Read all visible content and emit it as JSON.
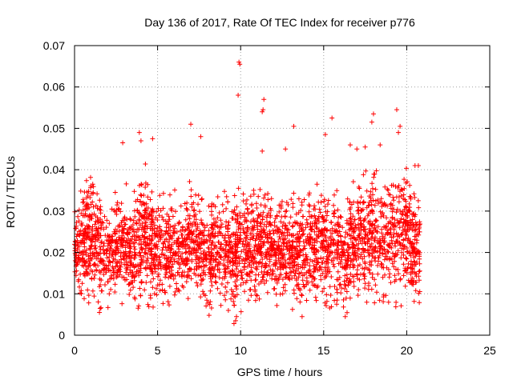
{
  "chart_data": {
    "type": "scatter",
    "title": "Day 136 of 2017, Rate Of TEC Index for receiver p776",
    "xlabel": "GPS time / hours",
    "ylabel": "ROTI / TECUs",
    "xlim": [
      0,
      25
    ],
    "ylim": [
      0,
      0.07
    ],
    "x_ticks": [
      "0",
      "5",
      "10",
      "15",
      "20",
      "25"
    ],
    "y_ticks": [
      "0",
      "0.01",
      "0.02",
      "0.03",
      "0.04",
      "0.05",
      "0.06",
      "0.07"
    ],
    "x_tick_values": [
      0,
      5,
      10,
      15,
      20,
      25
    ],
    "y_tick_values": [
      0,
      0.01,
      0.02,
      0.03,
      0.04,
      0.05,
      0.06,
      0.07
    ],
    "grid": true,
    "marker": "+",
    "color": "#ff0000",
    "data_x_range": [
      0,
      20.8
    ],
    "envelope": {
      "hours": [
        0,
        0.5,
        1,
        1.5,
        2,
        2.5,
        3,
        3.5,
        4,
        4.5,
        5,
        5.5,
        6,
        6.5,
        7,
        7.5,
        8,
        8.5,
        9,
        9.5,
        10,
        10.5,
        11,
        11.5,
        12,
        12.5,
        13,
        13.5,
        14,
        14.5,
        15,
        15.5,
        16,
        16.5,
        17,
        17.5,
        18,
        18.5,
        19,
        19.5,
        20,
        20.5,
        20.8
      ],
      "low": [
        0.012,
        0.008,
        0.007,
        0.006,
        0.006,
        0.007,
        0.006,
        0.007,
        0.005,
        0.006,
        0.006,
        0.007,
        0.006,
        0.007,
        0.006,
        0.007,
        0.006,
        0.007,
        0.006,
        0.006,
        0.004,
        0.006,
        0.006,
        0.007,
        0.007,
        0.007,
        0.006,
        0.006,
        0.005,
        0.007,
        0.006,
        0.006,
        0.006,
        0.005,
        0.007,
        0.007,
        0.006,
        0.007,
        0.007,
        0.006,
        0.007,
        0.006,
        0.008
      ],
      "high": [
        0.03,
        0.037,
        0.04,
        0.035,
        0.033,
        0.035,
        0.038,
        0.034,
        0.043,
        0.04,
        0.038,
        0.034,
        0.036,
        0.033,
        0.039,
        0.035,
        0.034,
        0.033,
        0.037,
        0.035,
        0.038,
        0.034,
        0.038,
        0.036,
        0.033,
        0.034,
        0.036,
        0.035,
        0.037,
        0.038,
        0.04,
        0.036,
        0.035,
        0.037,
        0.039,
        0.041,
        0.043,
        0.038,
        0.04,
        0.042,
        0.041,
        0.037,
        0.036
      ]
    },
    "outliers": [
      {
        "x": 9.9,
        "y": 0.066
      },
      {
        "x": 9.95,
        "y": 0.0655
      },
      {
        "x": 9.85,
        "y": 0.058
      },
      {
        "x": 11.4,
        "y": 0.057
      },
      {
        "x": 11.3,
        "y": 0.054
      },
      {
        "x": 11.35,
        "y": 0.0545
      },
      {
        "x": 11.3,
        "y": 0.0445
      },
      {
        "x": 7.0,
        "y": 0.051
      },
      {
        "x": 7.6,
        "y": 0.048
      },
      {
        "x": 13.2,
        "y": 0.0505
      },
      {
        "x": 15.5,
        "y": 0.0525
      },
      {
        "x": 15.1,
        "y": 0.0485
      },
      {
        "x": 18.0,
        "y": 0.0535
      },
      {
        "x": 17.9,
        "y": 0.0515
      },
      {
        "x": 19.4,
        "y": 0.0545
      },
      {
        "x": 19.6,
        "y": 0.0505
      },
      {
        "x": 19.5,
        "y": 0.049
      },
      {
        "x": 3.9,
        "y": 0.049
      },
      {
        "x": 4.0,
        "y": 0.047
      },
      {
        "x": 2.9,
        "y": 0.0465
      },
      {
        "x": 4.7,
        "y": 0.0475
      },
      {
        "x": 12.7,
        "y": 0.045
      },
      {
        "x": 16.6,
        "y": 0.046
      },
      {
        "x": 17.0,
        "y": 0.045
      },
      {
        "x": 17.5,
        "y": 0.0455
      },
      {
        "x": 18.4,
        "y": 0.046
      },
      {
        "x": 20.5,
        "y": 0.041
      },
      {
        "x": 20.7,
        "y": 0.041
      },
      {
        "x": 9.6,
        "y": 0.0028
      },
      {
        "x": 9.7,
        "y": 0.0035
      },
      {
        "x": 9.75,
        "y": 0.0045
      },
      {
        "x": 16.3,
        "y": 0.0045
      },
      {
        "x": 13.7,
        "y": 0.0045
      },
      {
        "x": 1.5,
        "y": 0.0055
      },
      {
        "x": 8.1,
        "y": 0.0048
      }
    ]
  }
}
